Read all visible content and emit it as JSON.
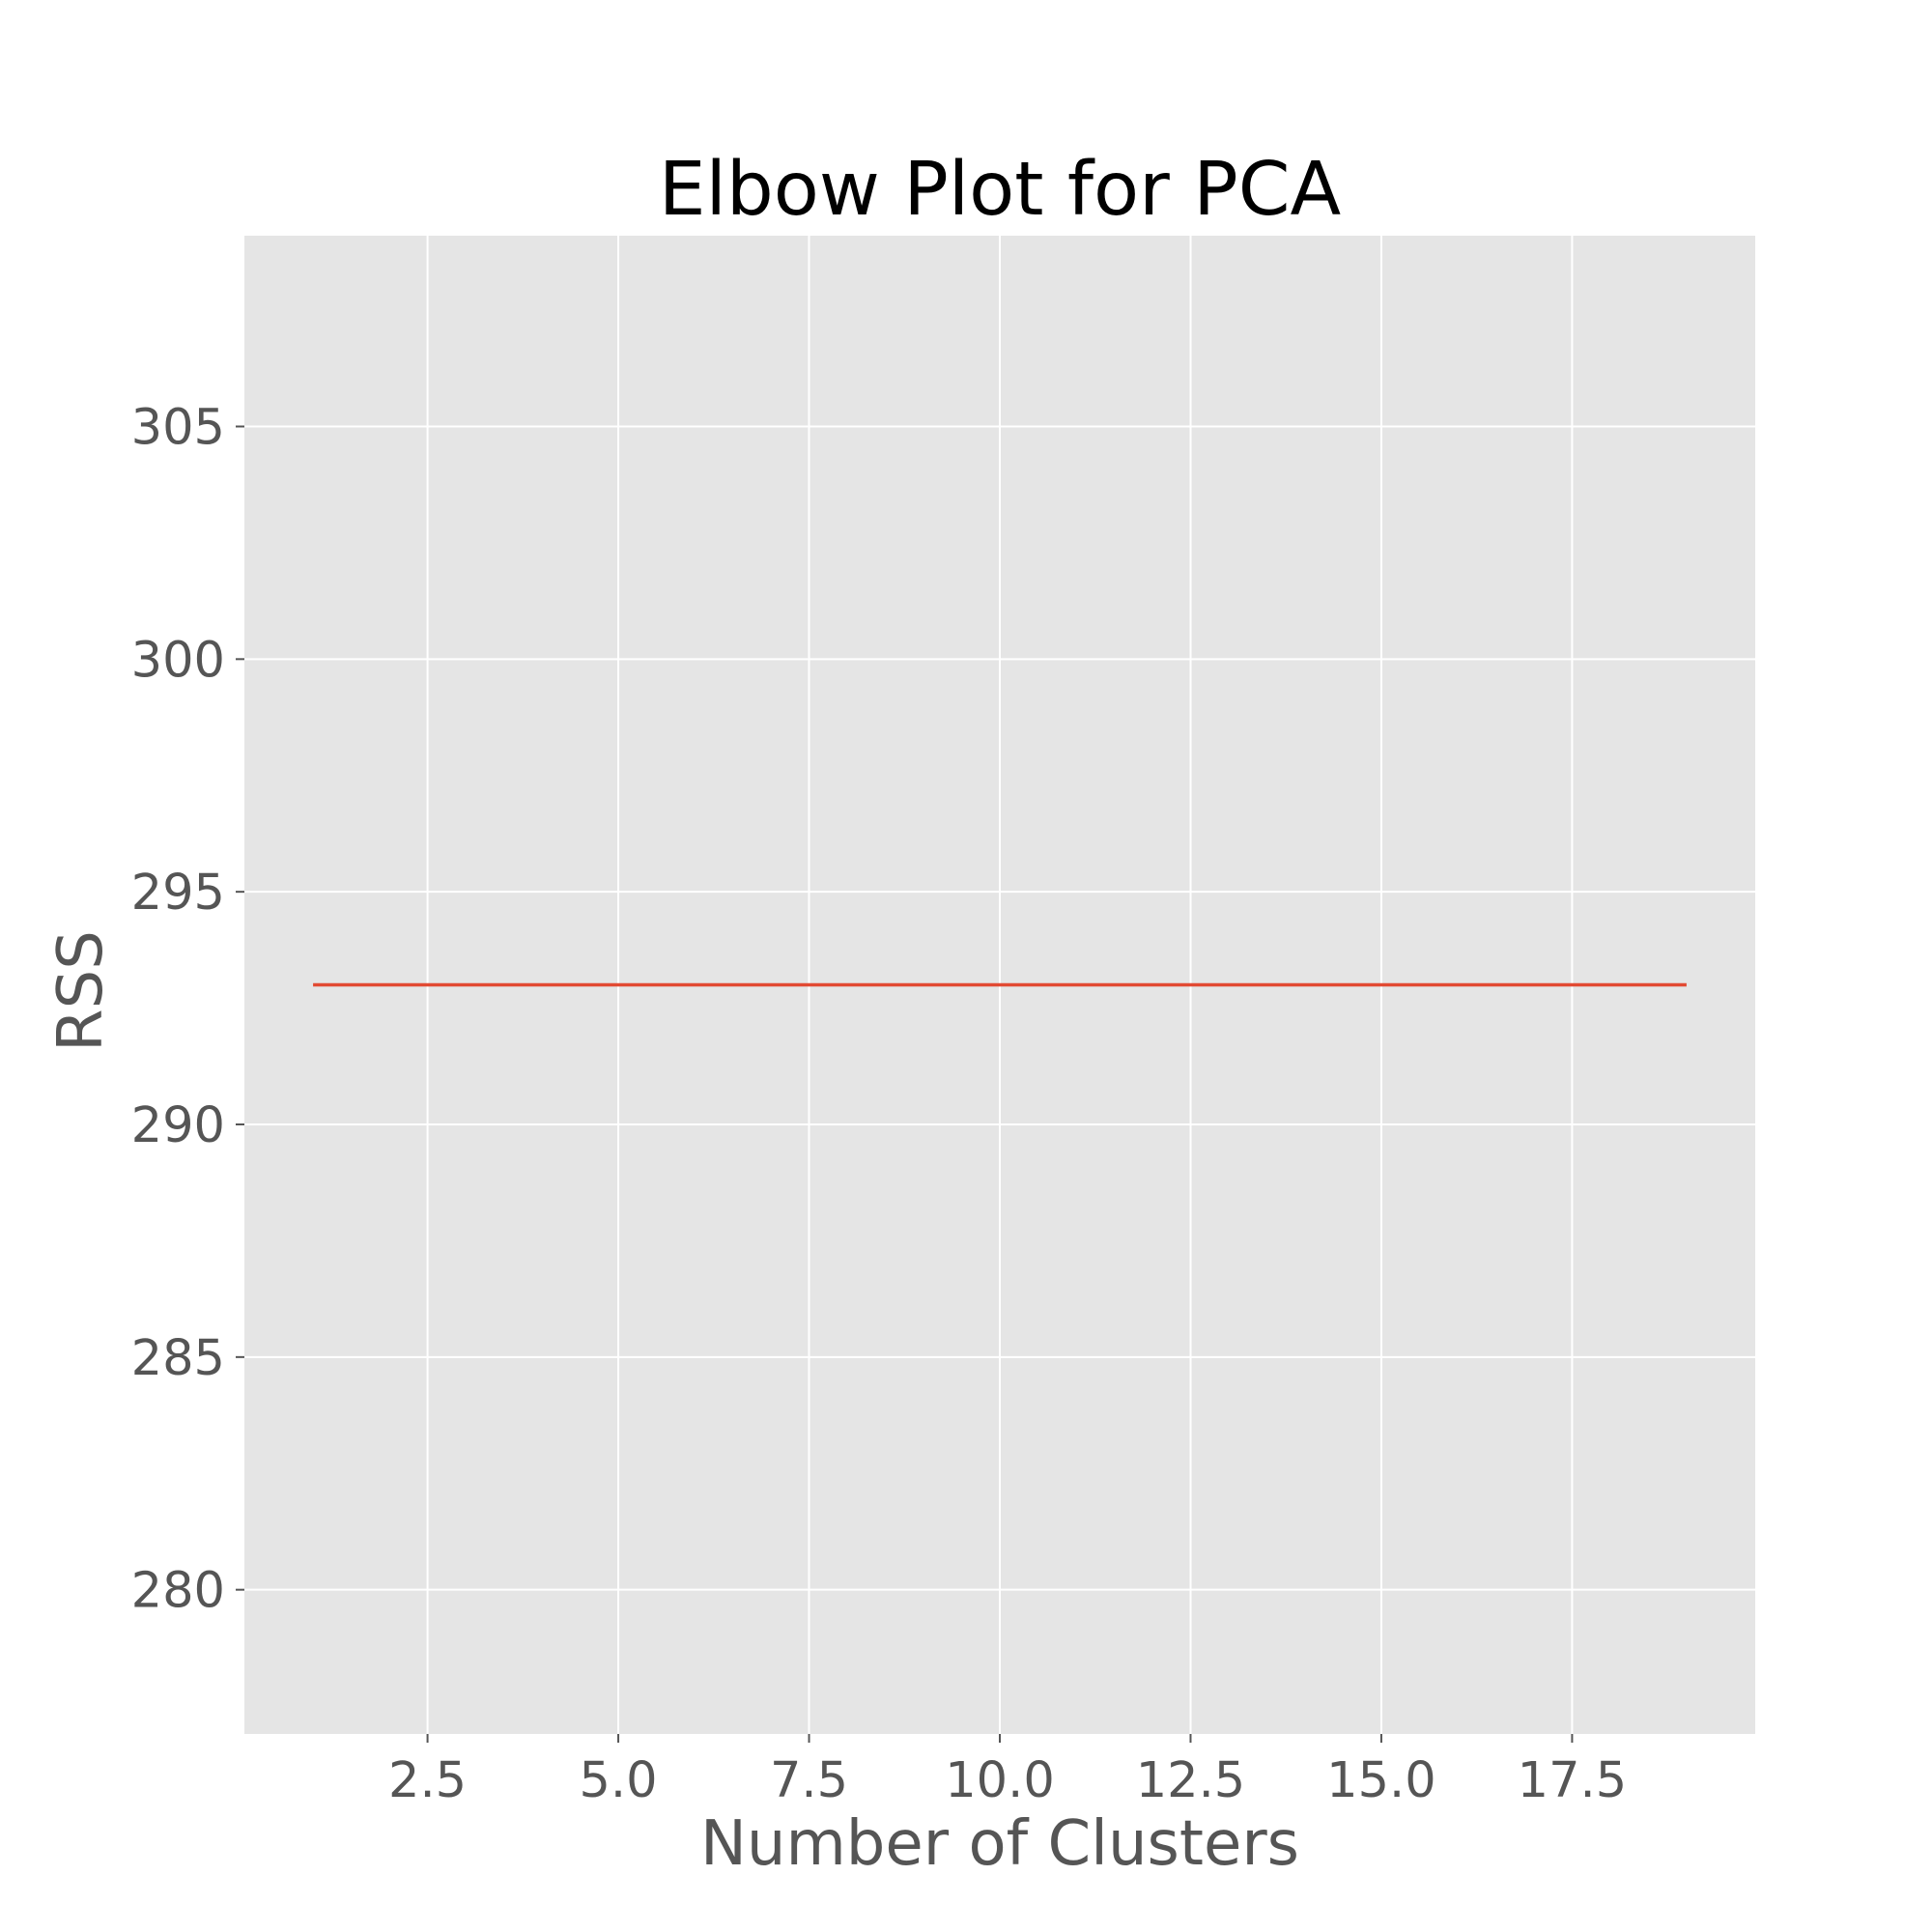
{
  "chart_data": {
    "type": "line",
    "title": "Elbow Plot for PCA",
    "xlabel": "Number of Clusters",
    "ylabel": "RSS",
    "xlim": [
      0.1,
      19.9
    ],
    "ylim": [
      276.9,
      309.1
    ],
    "xticks": [
      2.5,
      5.0,
      7.5,
      10.0,
      12.5,
      15.0,
      17.5
    ],
    "xtick_labels": [
      "2.5",
      "5.0",
      "7.5",
      "10.0",
      "12.5",
      "15.0",
      "17.5"
    ],
    "yticks": [
      280,
      285,
      290,
      295,
      300,
      305
    ],
    "ytick_labels": [
      "280",
      "285",
      "290",
      "295",
      "300",
      "305"
    ],
    "grid": true,
    "background_color": "#e5e5e5",
    "grid_color": "#ffffff",
    "series": [
      {
        "color": "#e24a33",
        "x": [
          1,
          2,
          3,
          4,
          5,
          6,
          7,
          8,
          9,
          10,
          11,
          12,
          13,
          14,
          15,
          16,
          17,
          18,
          19
        ],
        "y": [
          293,
          293,
          293,
          293,
          293,
          293,
          293,
          293,
          293,
          293,
          293,
          293,
          293,
          293,
          293,
          293,
          293,
          293,
          293
        ]
      }
    ]
  }
}
